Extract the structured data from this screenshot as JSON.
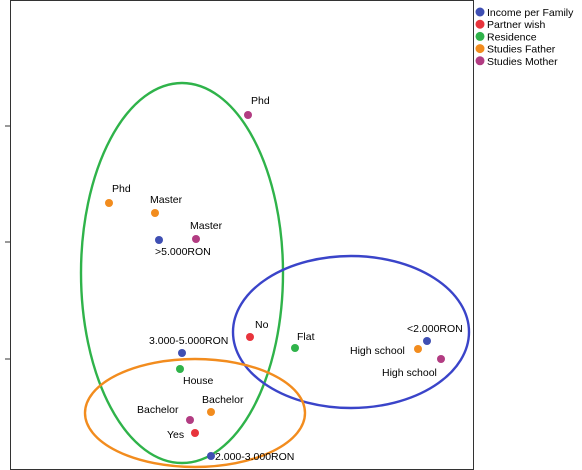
{
  "chart_data": {
    "type": "scatter",
    "title": "",
    "xlabel": "",
    "ylabel": "",
    "grid": false,
    "legend_position": "top-right",
    "series": [
      {
        "name": "Income per Family",
        "color": "#3f4fb3",
        "points": [
          {
            "label": ">5.000RON",
            "x": 159,
            "y": 240
          },
          {
            "label": "3.000-5.000RON",
            "x": 182,
            "y": 353
          },
          {
            "label": "<2.000RON",
            "x": 427,
            "y": 341
          },
          {
            "label": "2.000-3.000RON",
            "x": 211,
            "y": 456
          }
        ]
      },
      {
        "name": "Partner wish",
        "color": "#e8343c",
        "points": [
          {
            "label": "No",
            "x": 250,
            "y": 337
          },
          {
            "label": "Yes",
            "x": 195,
            "y": 433
          }
        ]
      },
      {
        "name": "Residence",
        "color": "#2fb34a",
        "points": [
          {
            "label": "House",
            "x": 180,
            "y": 369
          },
          {
            "label": "Flat",
            "x": 295,
            "y": 348
          }
        ]
      },
      {
        "name": "Studies Father",
        "color": "#f28c1e",
        "points": [
          {
            "label": "Phd",
            "x": 109,
            "y": 203
          },
          {
            "label": "Master",
            "x": 155,
            "y": 213
          },
          {
            "label": "High school",
            "x": 418,
            "y": 349
          },
          {
            "label": "Bachelor",
            "x": 211,
            "y": 412
          }
        ]
      },
      {
        "name": "Studies Mother",
        "color": "#b23c82",
        "points": [
          {
            "label": "Phd",
            "x": 248,
            "y": 115
          },
          {
            "label": "Master",
            "x": 196,
            "y": 239
          },
          {
            "label": "High school",
            "x": 441,
            "y": 359
          },
          {
            "label": "Bachelor",
            "x": 190,
            "y": 420
          }
        ]
      }
    ],
    "annotations": [
      {
        "shape": "ellipse",
        "color": "#2fb34a"
      },
      {
        "shape": "ellipse",
        "color": "#3a44c9"
      },
      {
        "shape": "ellipse",
        "color": "#f28c1e"
      }
    ]
  }
}
